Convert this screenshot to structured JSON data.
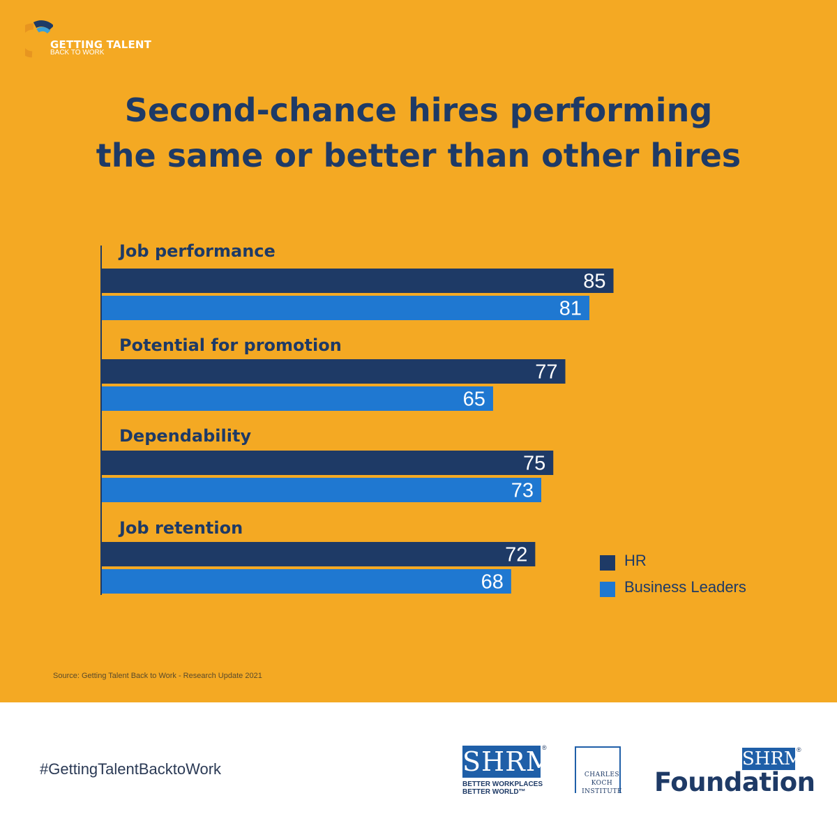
{
  "brand": {
    "line1": "GETTING TALENT",
    "line2": "BACK TO WORK"
  },
  "title_line1": "Second-chance hires performing",
  "title_line2": "the same or better than other hires",
  "colors": {
    "background": "#f4a923",
    "hr": "#1e3a66",
    "business_leaders": "#1f78d1",
    "text_dark": "#1e3a66"
  },
  "chart_data": {
    "type": "bar",
    "orientation": "horizontal",
    "categories": [
      "Job performance",
      "Potential for promotion",
      "Dependability",
      "Job retention"
    ],
    "series": [
      {
        "name": "HR",
        "values": [
          85,
          77,
          75,
          72
        ]
      },
      {
        "name": "Business Leaders",
        "values": [
          81,
          65,
          73,
          68
        ]
      }
    ],
    "legend_position": "bottom-right",
    "grid": false,
    "data_labels": true
  },
  "legend": [
    {
      "label": "HR",
      "color": "#1e3a66"
    },
    {
      "label": "Business Leaders",
      "color": "#1f78d1"
    }
  ],
  "source": "Source: Getting Talent Back to Work - Research Update 2021",
  "footer": {
    "hashtag": "#GettingTalentBacktoWork",
    "shrm_logo": "SHRM",
    "shrm_tagline_line1": "BETTER WORKPLACES",
    "shrm_tagline_line2": "BETTER WORLD™",
    "cki_line1": "CHARLES",
    "cki_line2": "KOCH",
    "cki_line3": "INSTITUTE",
    "foundation_logo": "SHRM",
    "foundation_text": "Foundation"
  }
}
